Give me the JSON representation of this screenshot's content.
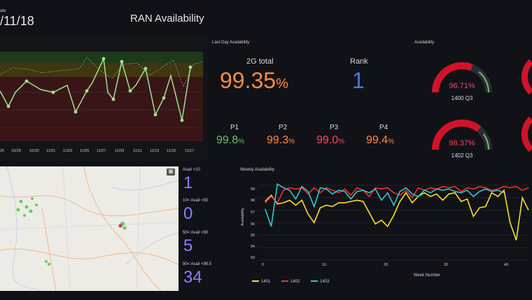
{
  "header": {
    "date_caption": "ate",
    "date": "/11/18",
    "title": "RAN Availability"
  },
  "top_left_chart": {
    "x_ticks": [
      "26",
      "10/28",
      "10/30",
      "11/01",
      "11/03",
      "11/05",
      "11/07",
      "11/09",
      "11/11",
      "11/13",
      "11/15",
      "11/17"
    ]
  },
  "last_day": {
    "panel_title": "Last Day Availability",
    "total_label": "2G total",
    "total_value": "99.35",
    "total_unit": "%",
    "rank_label": "Rank",
    "rank_value": "1",
    "colors": {
      "total": "#ff8a3d",
      "rank": "#3d7fe0",
      "p_green": "#73bf69",
      "p_orange": "#ff8a3d",
      "p_red": "#f2495c"
    },
    "parts": [
      {
        "label": "P1",
        "value": "99.8",
        "unit": "%",
        "color": "#73bf69"
      },
      {
        "label": "P2",
        "value": "99.3",
        "unit": "%",
        "color": "#ff8a3d"
      },
      {
        "label": "P3",
        "value": "99.0",
        "unit": "%",
        "color": "#f2495c"
      },
      {
        "label": "P4",
        "value": "99.4",
        "unit": "%",
        "color": "#ff8a3d"
      }
    ]
  },
  "gauges": {
    "panel_title": "Availability",
    "items": [
      {
        "value": "96.71%",
        "label": "1400 Q3",
        "fraction": 0.62
      },
      {
        "value": "98.37%",
        "label": "1402 Q3",
        "fraction": 0.72
      }
    ]
  },
  "map": {
    "legend_icon": "layers-icon"
  },
  "avail_counts": {
    "items": [
      {
        "label": "Avail <10",
        "value": "1"
      },
      {
        "label": "10< Avail <50",
        "value": "0"
      },
      {
        "label": "50< Avail <90",
        "value": "5"
      },
      {
        "label": "90< Avail <99.5",
        "value": "34"
      }
    ],
    "color": "#8a7fff"
  },
  "weekly": {
    "panel_title": "Weekly Availability",
    "ylabel": "Availability",
    "xlabel": "Week Number",
    "y_ticks": [
      "99",
      "98",
      "97",
      "96",
      "95",
      "94",
      "93"
    ],
    "x_ticks": [
      "0",
      "10",
      "20",
      "30",
      "40"
    ]
  },
  "chart_data": {
    "type": "line",
    "title": "Weekly Availability",
    "xlabel": "Week Number",
    "ylabel": "Availability",
    "xlim": [
      0,
      44
    ],
    "ylim": [
      93,
      99.5
    ],
    "series": [
      {
        "name": "1401",
        "color": "#fade2a",
        "x": [
          1,
          2,
          3,
          4,
          5,
          6,
          7,
          8,
          9,
          10,
          11,
          12,
          13,
          14,
          15,
          16,
          17,
          18,
          19,
          20,
          21,
          22,
          23,
          24,
          25,
          26,
          27,
          28,
          29,
          30,
          31,
          32,
          33,
          34,
          35,
          36,
          37,
          38,
          39,
          40,
          41,
          42,
          43,
          44
        ],
        "values": [
          97.7,
          98.2,
          97.5,
          97.6,
          97.8,
          97.4,
          97.8,
          96.7,
          96.0,
          97.2,
          97.4,
          97.3,
          97.6,
          97.6,
          97.7,
          97.8,
          97.7,
          96.8,
          95.9,
          96.2,
          95.7,
          96.6,
          97.7,
          98.4,
          97.6,
          98.1,
          98.4,
          98.1,
          98.3,
          97.8,
          98.3,
          98.4,
          97.7,
          97.9,
          96.5,
          97.2,
          97.3,
          98.4,
          98.1,
          98.6,
          96.0,
          94.6,
          98.0,
          97.0
        ]
      },
      {
        "name": "1402",
        "color": "#f2312b",
        "x": [
          1,
          2,
          3,
          4,
          5,
          6,
          7,
          8,
          9,
          10,
          11,
          12,
          13,
          14,
          15,
          16,
          17,
          18,
          19,
          20,
          21,
          22,
          23,
          24,
          25,
          26,
          27,
          28,
          29,
          30,
          31,
          32,
          33,
          34,
          35,
          36,
          37,
          38,
          39,
          40,
          41,
          42,
          43,
          44
        ],
        "values": [
          97.6,
          98.1,
          97.6,
          98.6,
          98.8,
          98.7,
          98.8,
          98.3,
          98.8,
          98.4,
          98.8,
          98.6,
          98.4,
          98.7,
          98.2,
          98.8,
          98.6,
          98.1,
          98.8,
          98.7,
          98.8,
          98.4,
          98.2,
          98.6,
          98.0,
          98.8,
          98.6,
          98.8,
          98.7,
          98.9,
          98.8,
          98.9,
          98.5,
          98.8,
          98.7,
          98.9,
          98.8,
          98.6,
          98.7,
          98.9,
          98.8,
          98.9,
          98.6,
          98.8
        ]
      },
      {
        "name": "1403",
        "color": "#30c8d6",
        "x": [
          1,
          2,
          3,
          4,
          5,
          6,
          7,
          8,
          9,
          10,
          11,
          12,
          13,
          14,
          15,
          16,
          17,
          18,
          19,
          20,
          21,
          22,
          23,
          24,
          25,
          26,
          27,
          28,
          29,
          30,
          31,
          32,
          33,
          34,
          35,
          36,
          37,
          38,
          39,
          40
        ],
        "values": [
          97.1,
          95.7,
          99.1,
          98.8,
          98.6,
          97.9,
          98.9,
          98.5,
          97.3,
          98.8,
          98.7,
          98.3,
          98.6,
          98.5,
          97.9,
          98.5,
          98.6,
          98.4,
          98.7,
          97.8,
          98.4,
          97.4,
          98.5,
          98.8,
          98.3,
          98.1,
          98.6,
          98.4,
          98.7,
          98.6,
          98.7,
          98.5,
          98.4,
          98.6,
          98.1,
          98.5,
          98.7,
          98.5,
          98.6,
          98.4
        ]
      }
    ]
  }
}
